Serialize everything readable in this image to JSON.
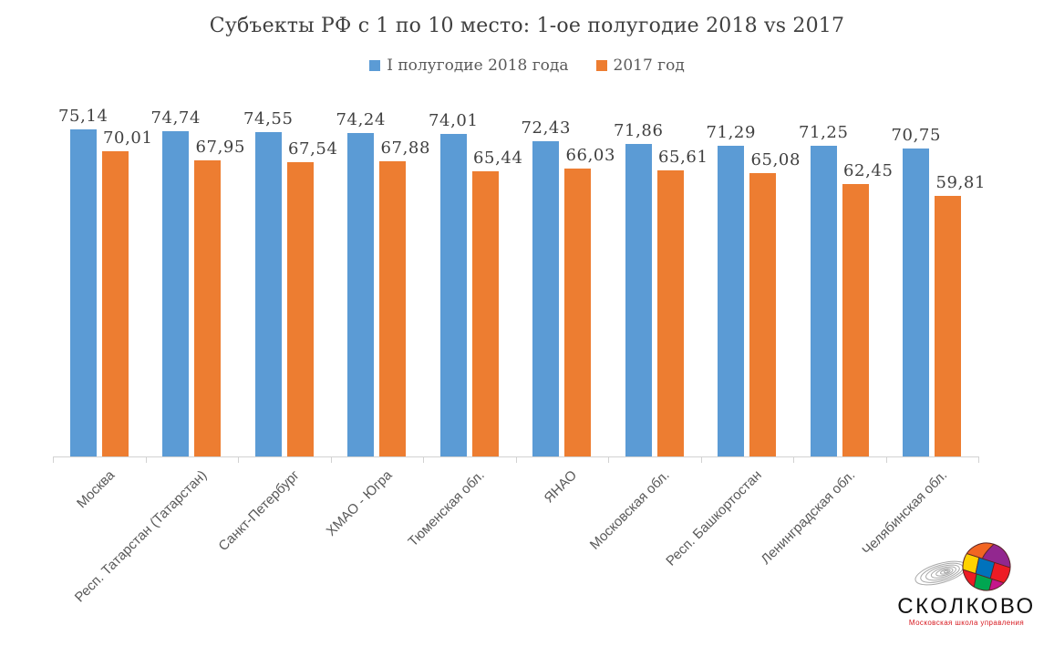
{
  "chart_data": {
    "type": "bar",
    "title": "Субъекты РФ с 1 по 10 место: 1-ое полугодие 2018 vs 2017",
    "categories": [
      "Москва",
      "Респ. Татарстан (Татарстан)",
      "Санкт-Петербург",
      "ХМАО - Югра",
      "Тюменская обл.",
      "ЯНАО",
      "Московская обл.",
      "Респ. Башкортостан",
      "Ленинградская обл.",
      "Челябинская обл."
    ],
    "series": [
      {
        "name": "I полугодие 2018 года",
        "color": "#5B9BD5",
        "values": [
          75.14,
          74.74,
          74.55,
          74.24,
          74.01,
          72.43,
          71.86,
          71.29,
          71.25,
          70.75
        ]
      },
      {
        "name": "2017 год",
        "color": "#ED7D31",
        "values": [
          70.01,
          67.95,
          67.54,
          67.88,
          65.44,
          66.03,
          65.61,
          65.08,
          62.45,
          59.81
        ]
      }
    ],
    "value_label_decimal_separator": ",",
    "ylim": [
      0,
      80
    ],
    "grid": false,
    "legend_position": "top",
    "axis_color": "#d2d2d2"
  },
  "logo": {
    "name": "СКОЛКОВО",
    "subtitle": "Московская школа управления",
    "subtitle_color": "#d7181f"
  }
}
